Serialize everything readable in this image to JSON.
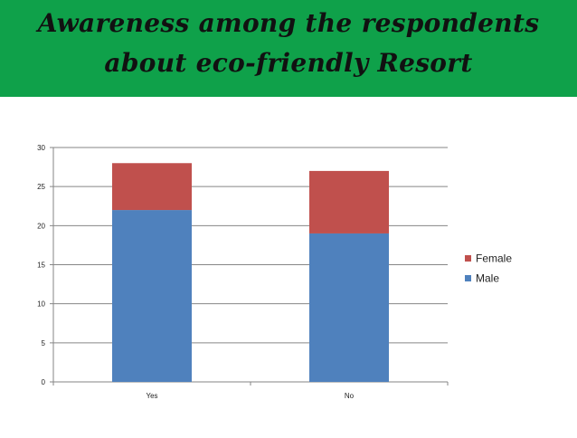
{
  "chart_data": {
    "type": "bar",
    "stacked": true,
    "title": "Awareness among the respondents about eco-friendly Resort",
    "categories": [
      "Yes",
      "No"
    ],
    "series": [
      {
        "name": "Male",
        "values": [
          22,
          19
        ],
        "color": "#4f81bd"
      },
      {
        "name": "Female",
        "values": [
          6,
          8
        ],
        "color": "#c0504d"
      }
    ],
    "ylim": [
      0,
      30
    ],
    "yticks": [
      0,
      5,
      10,
      15,
      20,
      25,
      30
    ],
    "grid": true,
    "legend": "right",
    "legend_order": [
      "Female",
      "Male"
    ],
    "colors": {
      "banner": "#0fa14a",
      "grid": "#868686"
    }
  }
}
